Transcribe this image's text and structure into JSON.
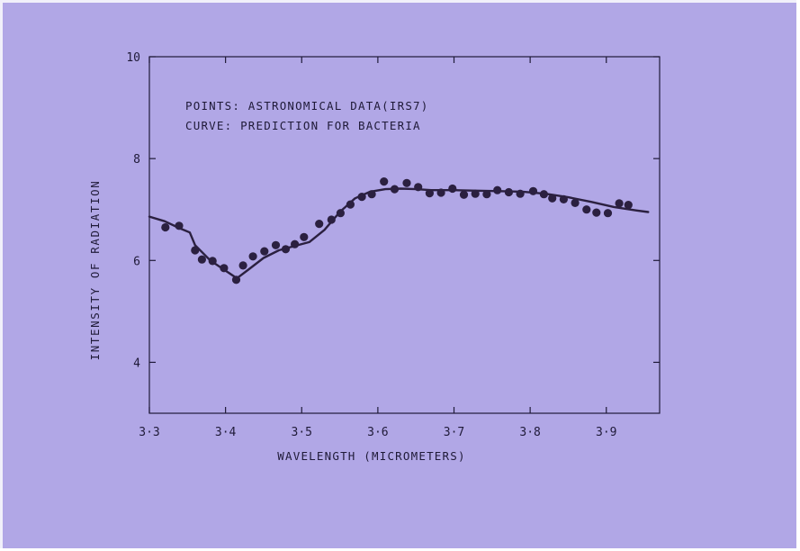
{
  "chart_data": {
    "type": "scatter",
    "annotations": [
      "POINTS: ASTRONOMICAL DATA(IRS7)",
      "CURVE: PREDICTION FOR BACTERIA"
    ],
    "xlabel": "WAVELENGTH (MICROMETERS)",
    "ylabel": "INTENSITY OF RADIATION",
    "xlim": [
      3.3,
      3.97
    ],
    "ylim": [
      3.0,
      10.0
    ],
    "x_ticks": [
      3.3,
      3.4,
      3.5,
      3.6,
      3.7,
      3.8,
      3.9
    ],
    "x_tick_labels": [
      "3·3",
      "3·4",
      "3·5",
      "3·6",
      "3·7",
      "3·8",
      "3·9"
    ],
    "y_ticks": [
      4,
      6,
      8,
      10
    ],
    "y_tick_labels": [
      "4",
      "6",
      "8",
      "10"
    ],
    "series": [
      {
        "kind": "points",
        "color": "#2b2040",
        "x": [
          3.321,
          3.339,
          3.36,
          3.369,
          3.383,
          3.398,
          3.414,
          3.423,
          3.436,
          3.451,
          3.466,
          3.479,
          3.491,
          3.503,
          3.523,
          3.539,
          3.551,
          3.564,
          3.579,
          3.592,
          3.608,
          3.622,
          3.638,
          3.653,
          3.668,
          3.683,
          3.698,
          3.713,
          3.728,
          3.743,
          3.757,
          3.772,
          3.787,
          3.804,
          3.818,
          3.829,
          3.844,
          3.859,
          3.874,
          3.887,
          3.902,
          3.917,
          3.929
        ],
        "y": [
          6.65,
          6.68,
          6.2,
          6.02,
          5.99,
          5.85,
          5.62,
          5.9,
          6.08,
          6.18,
          6.3,
          6.22,
          6.32,
          6.46,
          6.72,
          6.8,
          6.93,
          7.1,
          7.25,
          7.3,
          7.55,
          7.4,
          7.52,
          7.44,
          7.32,
          7.33,
          7.41,
          7.29,
          7.31,
          7.3,
          7.38,
          7.34,
          7.31,
          7.36,
          7.3,
          7.22,
          7.2,
          7.13,
          7.0,
          6.94,
          6.93,
          7.12,
          7.09
        ]
      },
      {
        "kind": "curve",
        "color": "#2b2040",
        "x": [
          3.3,
          3.32,
          3.34,
          3.353,
          3.36,
          3.38,
          3.4,
          3.415,
          3.43,
          3.45,
          3.47,
          3.49,
          3.51,
          3.53,
          3.55,
          3.57,
          3.59,
          3.61,
          3.63,
          3.65,
          3.67,
          3.7,
          3.73,
          3.76,
          3.79,
          3.82,
          3.85,
          3.88,
          3.91,
          3.94,
          3.955
        ],
        "y": [
          6.86,
          6.77,
          6.63,
          6.55,
          6.3,
          6.0,
          5.8,
          5.65,
          5.82,
          6.05,
          6.2,
          6.28,
          6.36,
          6.6,
          6.95,
          7.22,
          7.35,
          7.4,
          7.41,
          7.4,
          7.38,
          7.38,
          7.37,
          7.36,
          7.35,
          7.31,
          7.24,
          7.15,
          7.05,
          6.98,
          6.95
        ]
      }
    ]
  }
}
